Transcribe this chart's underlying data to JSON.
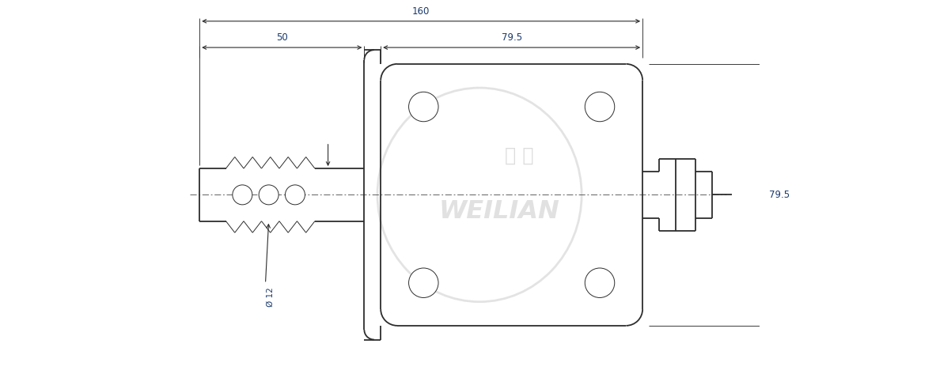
{
  "bg_color": "#ffffff",
  "line_color": "#2d2d2d",
  "dim_color": "#2d2d2d",
  "dim_text_color": "#1a3a6e",
  "watermark_color": "#d8d8d8",
  "watermark_alpha": 0.55,
  "fig_width": 11.83,
  "fig_height": 4.92,
  "dpi": 100,
  "dim_160": "160",
  "dim_50": "50",
  "dim_79_5h": "79.5",
  "dim_79_5v": "79.5",
  "dim_phi12": "Ø 12",
  "watermark_cn": "雑 连",
  "watermark_en": "WEILIAN",
  "lw_main": 1.3,
  "lw_thin": 0.7,
  "lw_dim": 0.8
}
